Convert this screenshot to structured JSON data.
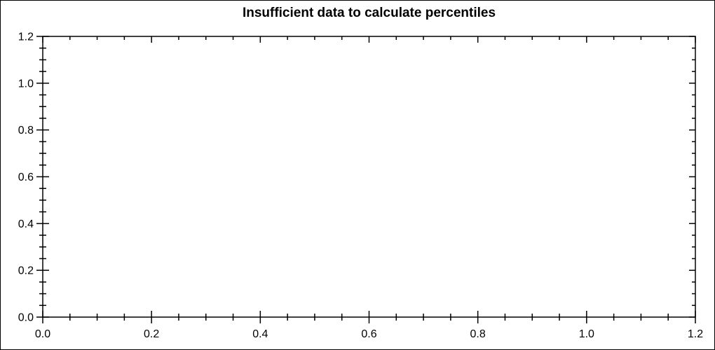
{
  "page": {
    "background_color": "#ffffff",
    "border_color": "#000000"
  },
  "chart_data": {
    "type": "scatter",
    "title": "Insufficient data to calculate percentiles",
    "series": [],
    "points": [],
    "xlabel": "",
    "ylabel": "",
    "xlim": [
      0.0,
      1.2
    ],
    "ylim": [
      0.0,
      1.2
    ],
    "x_major_ticks": [
      0.0,
      0.2,
      0.4,
      0.6,
      0.8,
      1.0,
      1.2
    ],
    "y_major_ticks": [
      0.0,
      0.2,
      0.4,
      0.6,
      0.8,
      1.0,
      1.2
    ],
    "x_tick_labels": [
      "0.0",
      "0.2",
      "0.4",
      "0.6",
      "0.8",
      "1.0",
      "1.2"
    ],
    "y_tick_labels": [
      "0.0",
      "0.2",
      "0.4",
      "0.6",
      "0.8",
      "1.0",
      "1.2"
    ],
    "minor_tick_step": 0.05,
    "grid": false,
    "frame": true,
    "legend": false,
    "axis_color": "#000000",
    "title_color": "#000000",
    "tick_label_color": "#000000",
    "plot_background_color": "#ffffff"
  }
}
